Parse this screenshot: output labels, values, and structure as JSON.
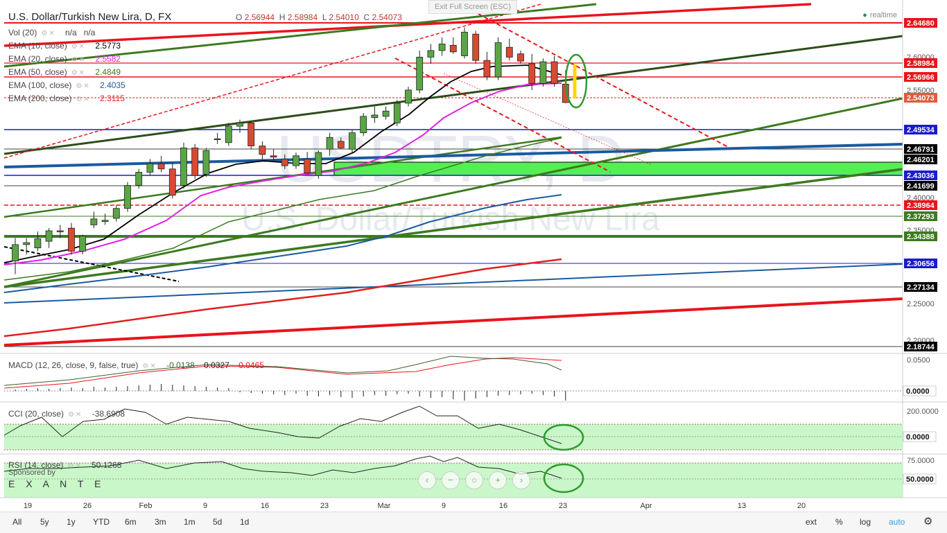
{
  "window": {
    "exit_fullscreen": "Exit Full Screen (ESC)"
  },
  "symbol": {
    "title": "U.S. Dollar/Turkish New Lira, D, FX",
    "watermark_symbol": "USDTRY, D",
    "watermark_name": "U.S. Dollar/Turkish New Lira"
  },
  "ohlc": {
    "o_label": "O",
    "o": "2.56944",
    "h_label": "H",
    "h": "2.58984",
    "l_label": "L",
    "l": "2.54010",
    "c_label": "C",
    "c": "2.54073"
  },
  "status": {
    "realtime": "realtime"
  },
  "indicators": [
    {
      "label": "Vol (20)",
      "value": "n/a",
      "value2": "n/a",
      "color": "#555"
    },
    {
      "label": "EMA (10, close)",
      "value": "2.5773",
      "color": "#000000"
    },
    {
      "label": "EMA (20, close)",
      "value": "2.5582",
      "color": "#e020e0"
    },
    {
      "label": "EMA (50, close)",
      "value": "2.4849",
      "color": "#3d7a1f"
    },
    {
      "label": "EMA (100, close)",
      "value": "2.4035",
      "color": "#1a5aa0"
    },
    {
      "label": "EMA (200, close)",
      "value": "2.3115",
      "color": "#e02020"
    }
  ],
  "price_axis": {
    "ticks": [
      "2.60000",
      "2.55000",
      "2.40000",
      "2.35000",
      "2.25000",
      "2.20000"
    ]
  },
  "price_labels": [
    {
      "text": "2.64680",
      "bg": "#e8141c"
    },
    {
      "text": "2.58984",
      "bg": "#e8141c"
    },
    {
      "text": "2.56966",
      "bg": "#e8141c"
    },
    {
      "text": "2.54073",
      "bg": "#e05a40"
    },
    {
      "text": "2.49534",
      "bg": "#1a1ad0"
    },
    {
      "text": "2.46791",
      "bg": "#000000"
    },
    {
      "text": "2.46201",
      "bg": "#000000"
    },
    {
      "text": "2.43036",
      "bg": "#1a1ad0"
    },
    {
      "text": "2.41699",
      "bg": "#000000"
    },
    {
      "text": "2.38964",
      "bg": "#e8141c"
    },
    {
      "text": "2.37293",
      "bg": "#3d7a1f"
    },
    {
      "text": "2.34388",
      "bg": "#3d7a1f"
    },
    {
      "text": "2.30656",
      "bg": "#1a1ad0"
    },
    {
      "text": "2.27134",
      "bg": "#000000"
    },
    {
      "text": "2.18744",
      "bg": "#000000"
    }
  ],
  "macd": {
    "label": "MACD (12, 26, close, 9, false, true)",
    "v1": "-0.0138",
    "v2": "0.0327",
    "v3": "0.0465",
    "axis_tick": "0.0500",
    "zero_label": "0.0000"
  },
  "cci": {
    "label": "CCI (20, close)",
    "value": "-38.6908",
    "axis_tick": "200.0000",
    "zero_label": "0.0000"
  },
  "rsi": {
    "label": "RSI (14, close)",
    "value": "50.1268",
    "axis_tick": "75.0000",
    "mid_label": "50.0000"
  },
  "sponsor": {
    "text": "Sponsored by",
    "brand": "E X A N T E"
  },
  "time_axis": [
    "19",
    "26",
    "Feb",
    "9",
    "16",
    "23",
    "Mar",
    "9",
    "16",
    "23",
    "Apr",
    "13",
    "20"
  ],
  "bottom_bar": {
    "ranges": [
      "All",
      "5y",
      "1y",
      "YTD",
      "6m",
      "3m",
      "1m",
      "5d",
      "1d"
    ],
    "right": [
      "ext",
      "%",
      "log",
      "auto"
    ]
  },
  "colors": {
    "up": "#5aa646",
    "down": "#d84a32",
    "accent": "#3a9ad9"
  },
  "chart_data": {
    "type": "candlestick",
    "title": "U.S. Dollar/Turkish New Lira, D, FX",
    "ylim": [
      2.17,
      2.68
    ],
    "candles": [
      [
        2.3,
        2.335,
        2.28,
        2.325
      ],
      [
        2.325,
        2.335,
        2.31,
        2.328
      ],
      [
        2.32,
        2.345,
        2.315,
        2.334
      ],
      [
        2.33,
        2.35,
        2.32,
        2.346
      ],
      [
        2.346,
        2.355,
        2.335,
        2.345
      ],
      [
        2.35,
        2.358,
        2.31,
        2.315
      ],
      [
        2.315,
        2.34,
        2.31,
        2.338
      ],
      [
        2.355,
        2.375,
        2.35,
        2.364
      ],
      [
        2.36,
        2.372,
        2.355,
        2.362
      ],
      [
        2.365,
        2.385,
        2.36,
        2.38
      ],
      [
        2.38,
        2.42,
        2.375,
        2.415
      ],
      [
        2.415,
        2.44,
        2.41,
        2.435
      ],
      [
        2.435,
        2.455,
        2.43,
        2.448
      ],
      [
        2.448,
        2.46,
        2.435,
        2.44
      ],
      [
        2.44,
        2.45,
        2.395,
        2.4
      ],
      [
        2.415,
        2.48,
        2.41,
        2.472
      ],
      [
        2.472,
        2.478,
        2.425,
        2.43
      ],
      [
        2.432,
        2.472,
        2.428,
        2.468
      ],
      [
        2.485,
        2.495,
        2.478,
        2.486
      ],
      [
        2.48,
        2.51,
        2.475,
        2.505
      ],
      [
        2.505,
        2.515,
        2.495,
        2.51
      ],
      [
        2.51,
        2.512,
        2.47,
        2.475
      ],
      [
        2.475,
        2.482,
        2.455,
        2.462
      ],
      [
        2.46,
        2.47,
        2.45,
        2.458
      ],
      [
        2.455,
        2.462,
        2.44,
        2.445
      ],
      [
        2.445,
        2.465,
        2.44,
        2.46
      ],
      [
        2.455,
        2.466,
        2.432,
        2.434
      ],
      [
        2.43,
        2.468,
        2.425,
        2.465
      ],
      [
        2.47,
        2.495,
        2.46,
        2.488
      ],
      [
        2.482,
        2.488,
        2.47,
        2.472
      ],
      [
        2.47,
        2.5,
        2.465,
        2.495
      ],
      [
        2.495,
        2.525,
        2.49,
        2.52
      ],
      [
        2.518,
        2.535,
        2.51,
        2.522
      ],
      [
        2.52,
        2.535,
        2.515,
        2.528
      ],
      [
        2.51,
        2.545,
        2.505,
        2.54
      ],
      [
        2.54,
        2.565,
        2.535,
        2.56
      ],
      [
        2.56,
        2.62,
        2.555,
        2.61
      ],
      [
        2.61,
        2.63,
        2.6,
        2.62
      ],
      [
        2.62,
        2.64,
        2.612,
        2.63
      ],
      [
        2.628,
        2.64,
        2.615,
        2.618
      ],
      [
        2.612,
        2.655,
        2.608,
        2.648
      ],
      [
        2.645,
        2.65,
        2.6,
        2.605
      ],
      [
        2.605,
        2.618,
        2.575,
        2.58
      ],
      [
        2.58,
        2.64,
        2.575,
        2.632
      ],
      [
        2.625,
        2.638,
        2.605,
        2.61
      ],
      [
        2.615,
        2.62,
        2.6,
        2.604
      ],
      [
        2.6,
        2.615,
        2.56,
        2.57
      ],
      [
        2.57,
        2.608,
        2.565,
        2.603
      ],
      [
        2.603,
        2.612,
        2.565,
        2.57
      ],
      [
        2.569,
        2.59,
        2.54,
        2.541
      ]
    ]
  }
}
